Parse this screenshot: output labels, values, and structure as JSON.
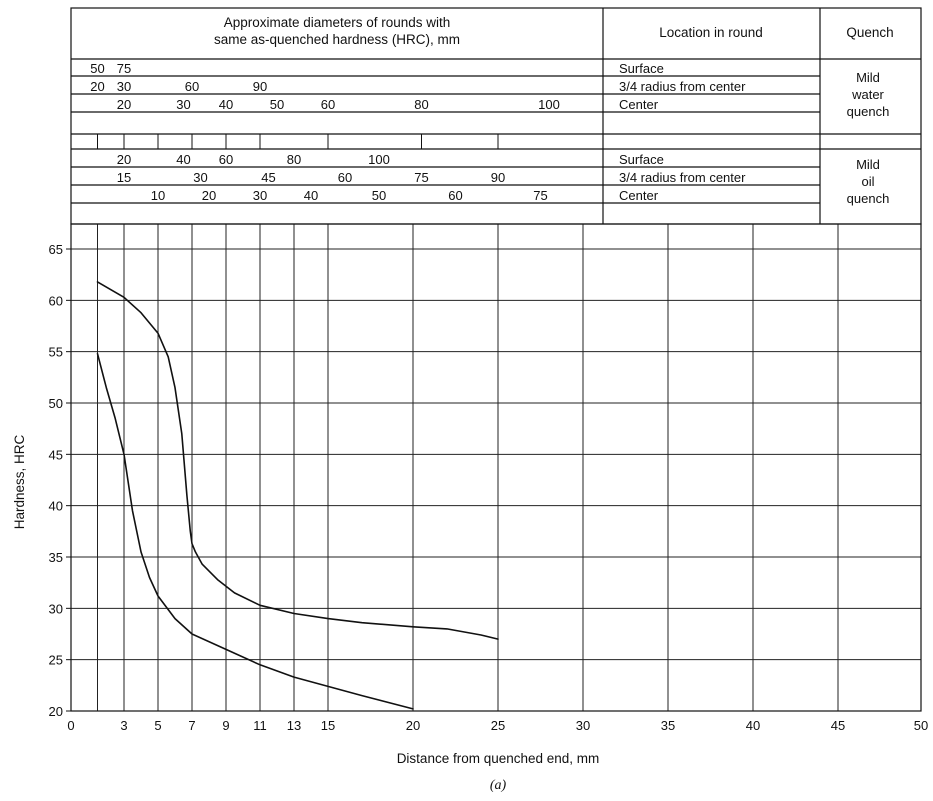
{
  "header": {
    "diameter_title_line1": "Approximate diameters of rounds with",
    "diameter_title_line2": "same as-quenched hardness (HRC), mm",
    "location_title": "Location in round",
    "quench_title": "Quench",
    "water_label": [
      "Mild",
      "water",
      "quench"
    ],
    "oil_label": [
      "Mild",
      "oil",
      "quench"
    ],
    "rows": [
      {
        "group": "water",
        "location": "Surface",
        "marks": [
          {
            "label": "50",
            "x": 1.5
          },
          {
            "label": "75",
            "x": 3
          }
        ]
      },
      {
        "group": "water",
        "location": "3/4 radius from center",
        "marks": [
          {
            "label": "20",
            "x": 1.5
          },
          {
            "label": "30",
            "x": 3
          },
          {
            "label": "60",
            "x": 7
          },
          {
            "label": "90",
            "x": 11
          }
        ]
      },
      {
        "group": "water",
        "location": "Center",
        "marks": [
          {
            "label": "20",
            "x": 3
          },
          {
            "label": "30",
            "x": 6.5
          },
          {
            "label": "40",
            "x": 9
          },
          {
            "label": "50",
            "x": 12
          },
          {
            "label": "60",
            "x": 15
          },
          {
            "label": "80",
            "x": 20.5
          },
          {
            "label": "100",
            "x": 28
          }
        ]
      },
      {
        "group": "oil",
        "location": "Surface",
        "marks": [
          {
            "label": "20",
            "x": 3
          },
          {
            "label": "40",
            "x": 6.5
          },
          {
            "label": "60",
            "x": 9
          },
          {
            "label": "80",
            "x": 13
          },
          {
            "label": "100",
            "x": 18
          }
        ]
      },
      {
        "group": "oil",
        "location": "3/4 radius from center",
        "marks": [
          {
            "label": "15",
            "x": 3
          },
          {
            "label": "30",
            "x": 7.5
          },
          {
            "label": "45",
            "x": 11.5
          },
          {
            "label": "60",
            "x": 16
          },
          {
            "label": "75",
            "x": 20.5
          },
          {
            "label": "90",
            "x": 25
          }
        ]
      },
      {
        "group": "oil",
        "location": "Center",
        "marks": [
          {
            "label": "10",
            "x": 5
          },
          {
            "label": "20",
            "x": 8
          },
          {
            "label": "30",
            "x": 11
          },
          {
            "label": "40",
            "x": 14
          },
          {
            "label": "50",
            "x": 18
          },
          {
            "label": "60",
            "x": 22.5
          },
          {
            "label": "75",
            "x": 27.5
          }
        ]
      }
    ]
  },
  "caption": "(a)",
  "chart_data": {
    "type": "line",
    "title": "",
    "xlabel": "Distance from quenched end, mm",
    "ylabel": "Hardness, HRC",
    "x_ticks": [
      0,
      3,
      5,
      7,
      9,
      11,
      13,
      15,
      20,
      25,
      30,
      35,
      40,
      45,
      50
    ],
    "x_tick_positions": [
      0,
      3,
      5,
      7,
      9,
      11,
      13,
      15,
      20,
      25,
      30,
      35,
      40,
      45,
      50
    ],
    "x_extra_gridlines": [
      1.5
    ],
    "y_ticks": [
      20,
      25,
      30,
      35,
      40,
      45,
      50,
      55,
      60,
      65
    ],
    "ylim": [
      20,
      67
    ],
    "grid": true,
    "series": [
      {
        "x": [
          1.5,
          3,
          4,
          5,
          5.6,
          6,
          6.4,
          6.7,
          6.9,
          7,
          7.2,
          7.6,
          8.5,
          9.5,
          11,
          13,
          15,
          17,
          20,
          22,
          24,
          25
        ],
        "values": [
          61.8,
          60.3,
          58.8,
          56.8,
          54.5,
          51.5,
          47,
          41,
          37.5,
          36.3,
          35.5,
          34.3,
          32.8,
          31.5,
          30.3,
          29.5,
          29.0,
          28.6,
          28.2,
          28.0,
          27.4,
          27.0
        ]
      },
      {
        "x": [
          1.5,
          2,
          2.5,
          3,
          3.5,
          4,
          4.5,
          5,
          6,
          7,
          9,
          11,
          13,
          15,
          17,
          20
        ],
        "values": [
          54.8,
          51.5,
          48.5,
          45,
          39.5,
          35.5,
          33,
          31.2,
          29,
          27.5,
          26,
          24.5,
          23.3,
          22.4,
          21.5,
          20.2
        ]
      }
    ]
  }
}
